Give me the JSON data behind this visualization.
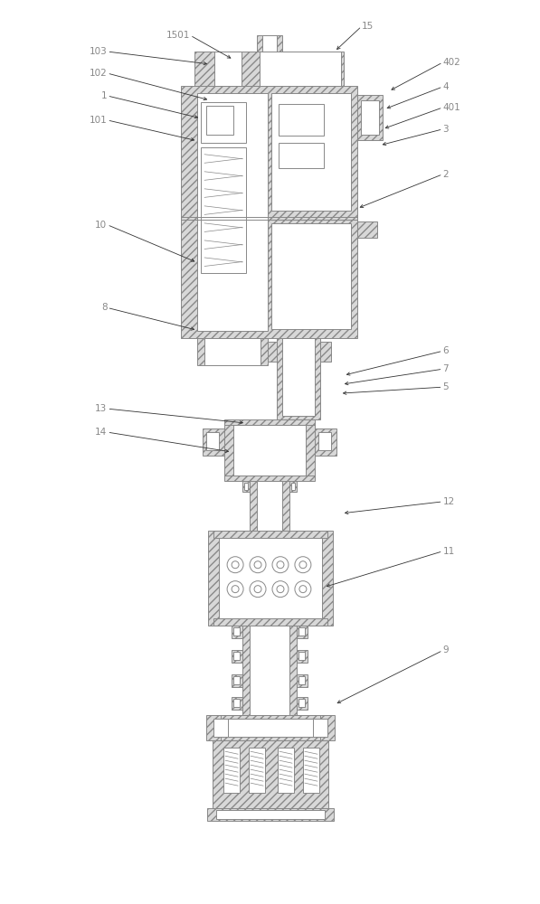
{
  "bg_color": "#ffffff",
  "lc": "#888888",
  "hatch_fc": "#d8d8d8",
  "white": "#ffffff",
  "label_color": "#888888",
  "arrow_color": "#333333",
  "figsize": [
    5.97,
    10.0
  ],
  "dpi": 100
}
